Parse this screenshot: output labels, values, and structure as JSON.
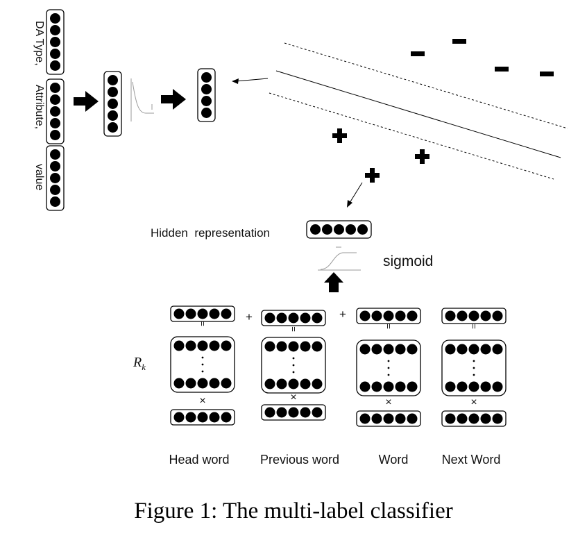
{
  "labels": {
    "da_type": "DA Type,",
    "attribute": "Attribute,",
    "value": "value",
    "hidden_representation": "Hidden  representation",
    "sigmoid": "sigmoid",
    "rk_main": "R",
    "rk_sub": "k",
    "plus": "+",
    "equals": "=",
    "times": "×"
  },
  "columns": [
    {
      "label": "Head word"
    },
    {
      "label": "Previous word"
    },
    {
      "label": "Word"
    },
    {
      "label": "Next Word"
    }
  ],
  "caption": "Figure 1: The multi-label classifier"
}
